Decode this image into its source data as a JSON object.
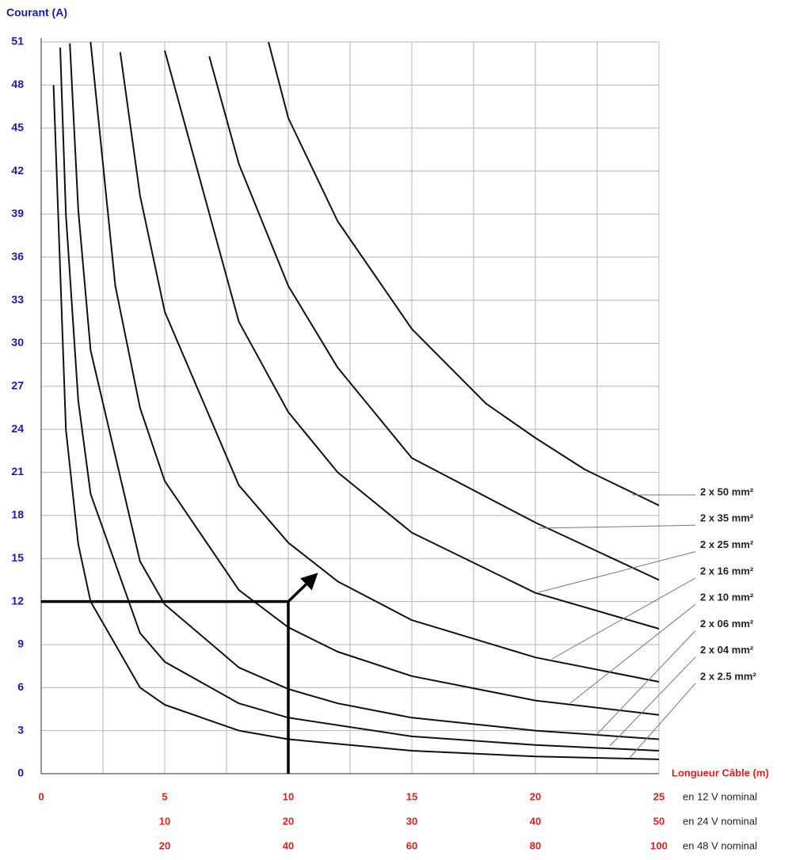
{
  "chart_data": {
    "type": "line",
    "ylabel": "Courant (A)",
    "xlabel": "Longueur Câble (m)",
    "xlim": [
      0,
      25
    ],
    "ylim": [
      0,
      51
    ],
    "yticks": [
      0,
      3,
      6,
      9,
      12,
      15,
      18,
      21,
      24,
      27,
      30,
      33,
      36,
      39,
      42,
      45,
      48,
      51
    ],
    "grid": true,
    "xscales": [
      {
        "label": "en 12 V nominal",
        "ticks": [
          0,
          5,
          10,
          15,
          20,
          25
        ]
      },
      {
        "label": "en 24 V nominal",
        "ticks": [
          {
            "value": 5,
            "label": "10"
          },
          {
            "value": 10,
            "label": "20"
          },
          {
            "value": 15,
            "label": "30"
          },
          {
            "value": 20,
            "label": "40"
          },
          {
            "value": 25,
            "label": "50"
          }
        ]
      },
      {
        "label": "en 48 V nominal",
        "ticks": [
          {
            "value": 5,
            "label": "20"
          },
          {
            "value": 10,
            "label": "40"
          },
          {
            "value": 15,
            "label": "60"
          },
          {
            "value": 20,
            "label": "80"
          },
          {
            "value": 25,
            "label": "100"
          }
        ]
      }
    ],
    "series": [
      {
        "name": "2 x 2.5 mm²",
        "color": "#111111",
        "x": [
          0.5,
          1,
          1.5,
          2,
          4,
          5,
          8,
          10,
          15,
          20,
          25
        ],
        "values": [
          48,
          24,
          16,
          12,
          6,
          4.8,
          3,
          2.4,
          1.6,
          1.2,
          1.0
        ]
      },
      {
        "name": "2 x 04 mm²",
        "color": "#111111",
        "x": [
          0.77,
          1,
          1.5,
          2,
          4,
          5,
          8,
          10,
          15,
          20,
          25
        ],
        "values": [
          50.6,
          39,
          26,
          19.5,
          9.8,
          7.8,
          4.9,
          3.9,
          2.6,
          2.0,
          1.6
        ]
      },
      {
        "name": "2 x 06 mm²",
        "color": "#111111",
        "x": [
          1.16,
          1.5,
          2,
          4,
          5,
          8,
          10,
          12,
          15,
          20,
          25
        ],
        "values": [
          50.9,
          39.3,
          29.5,
          14.8,
          11.8,
          7.4,
          5.9,
          4.9,
          3.9,
          3.0,
          2.4
        ]
      },
      {
        "name": "2 x 10 mm²",
        "color": "#111111",
        "x": [
          2,
          3,
          4,
          5,
          8,
          10,
          12,
          15,
          20,
          25
        ],
        "values": [
          51,
          34,
          25.5,
          20.4,
          12.8,
          10.2,
          8.5,
          6.8,
          5.1,
          4.1
        ]
      },
      {
        "name": "2 x 16 mm²",
        "color": "#111111",
        "x": [
          3.2,
          4,
          5,
          8,
          10,
          12,
          15,
          20,
          25
        ],
        "values": [
          50.3,
          40.3,
          32.2,
          20.1,
          16.1,
          13.4,
          10.7,
          8.1,
          6.4
        ]
      },
      {
        "name": "2 x 25 mm²",
        "color": "#111111",
        "x": [
          5,
          8,
          10,
          12,
          15,
          20,
          25
        ],
        "values": [
          50.4,
          31.5,
          25.2,
          21,
          16.8,
          12.6,
          10.1
        ]
      },
      {
        "name": "2 x 35 mm²",
        "color": "#111111",
        "x": [
          6.8,
          8,
          10,
          12,
          15,
          20,
          25
        ],
        "values": [
          50,
          42.5,
          34,
          28.3,
          22,
          17.5,
          13.5
        ]
      },
      {
        "name": "2 x 50 mm²",
        "color": "#111111",
        "x": [
          9.2,
          10,
          12,
          15,
          18,
          20,
          22,
          25
        ],
        "values": [
          51,
          45.7,
          38.5,
          31,
          25.8,
          23.4,
          21.2,
          18.7
        ]
      }
    ],
    "example": {
      "x": 10,
      "y": 12
    }
  }
}
